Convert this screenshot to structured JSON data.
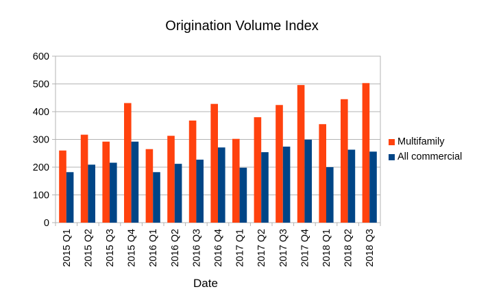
{
  "chart_data": {
    "type": "bar",
    "title": "Origination Volume Index",
    "xlabel": "Date",
    "ylabel": "",
    "ylim": [
      0,
      600
    ],
    "yticks": [
      0,
      100,
      200,
      300,
      400,
      500,
      600
    ],
    "grid": true,
    "legend_position": "right",
    "categories": [
      "2015 Q1",
      "2015 Q2",
      "2015 Q3",
      "2015 Q4",
      "2016 Q1",
      "2016 Q2",
      "2016 Q3",
      "2016 Q4",
      "2017 Q1",
      "2017 Q2",
      "2017 Q3",
      "2017 Q4",
      "2018 Q1",
      "2018 Q2",
      "2018 Q3"
    ],
    "series": [
      {
        "name": "Multifamily",
        "color": "#ff420e",
        "values": [
          260,
          317,
          292,
          431,
          265,
          313,
          368,
          428,
          302,
          380,
          424,
          496,
          355,
          445,
          503
        ]
      },
      {
        "name": "All commercial",
        "color": "#004586",
        "values": [
          182,
          209,
          216,
          292,
          182,
          212,
          227,
          271,
          198,
          254,
          274,
          299,
          200,
          263,
          256
        ]
      }
    ]
  }
}
